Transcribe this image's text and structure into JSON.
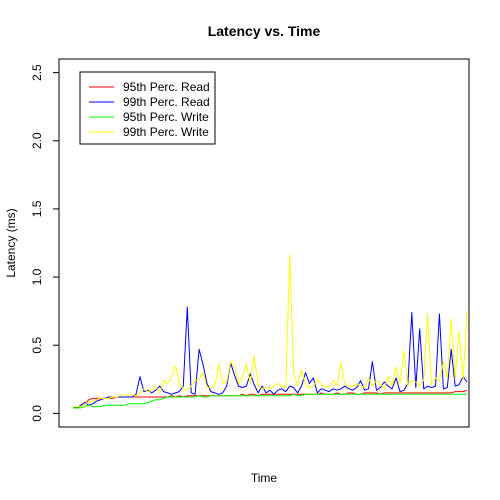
{
  "chart_data": {
    "type": "line",
    "title": "Latency vs. Time",
    "xlabel": "Time",
    "ylabel": "Latency (ms)",
    "ylim": [
      -0.1,
      2.6
    ],
    "xlim": [
      0,
      100
    ],
    "y_ticks": [
      "0.0",
      "0.5",
      "1.0",
      "1.5",
      "2.0",
      "2.5"
    ],
    "y_tick_values": [
      0,
      0.5,
      1.0,
      1.5,
      2.0,
      2.5
    ],
    "legend_position": "top-left",
    "x": [
      0,
      1,
      2,
      3,
      4,
      5,
      6,
      7,
      8,
      9,
      10,
      11,
      12,
      13,
      14,
      15,
      16,
      17,
      18,
      19,
      20,
      21,
      22,
      23,
      24,
      25,
      26,
      27,
      28,
      29,
      30,
      31,
      32,
      33,
      34,
      35,
      36,
      37,
      38,
      39,
      40,
      41,
      42,
      43,
      44,
      45,
      46,
      47,
      48,
      49,
      50,
      51,
      52,
      53,
      54,
      55,
      56,
      57,
      58,
      59,
      60,
      61,
      62,
      63,
      64,
      65,
      66,
      67,
      68,
      69,
      70,
      71,
      72,
      73,
      74,
      75,
      76,
      77,
      78,
      79,
      80,
      81,
      82,
      83,
      84,
      85,
      86,
      87,
      88,
      89,
      90,
      91,
      92,
      93,
      94,
      95,
      96,
      97,
      98,
      99,
      100
    ],
    "series": [
      {
        "name": "95th Perc. Read",
        "color": "#ff0000",
        "values": [
          0.04,
          0.04,
          0.05,
          0.07,
          0.1,
          0.11,
          0.11,
          0.11,
          0.11,
          0.11,
          0.11,
          0.12,
          0.12,
          0.12,
          0.12,
          0.12,
          0.12,
          0.12,
          0.12,
          0.12,
          0.12,
          0.12,
          0.12,
          0.12,
          0.12,
          0.13,
          0.12,
          0.13,
          0.12,
          0.13,
          0.13,
          0.13,
          0.13,
          0.13,
          0.13,
          0.13,
          0.13,
          0.13,
          0.13,
          0.13,
          0.13,
          0.13,
          0.13,
          0.14,
          0.13,
          0.14,
          0.14,
          0.13,
          0.14,
          0.14,
          0.14,
          0.14,
          0.14,
          0.14,
          0.14,
          0.14,
          0.14,
          0.14,
          0.14,
          0.14,
          0.14,
          0.14,
          0.14,
          0.15,
          0.14,
          0.14,
          0.14,
          0.15,
          0.14,
          0.14,
          0.15,
          0.15,
          0.14,
          0.14,
          0.15,
          0.15,
          0.15,
          0.15,
          0.14,
          0.15,
          0.15,
          0.15,
          0.15,
          0.15,
          0.15,
          0.15,
          0.15,
          0.15,
          0.15,
          0.15,
          0.15,
          0.15,
          0.15,
          0.15,
          0.15,
          0.15,
          0.15,
          0.16,
          0.16,
          0.16,
          0.17
        ]
      },
      {
        "name": "99th Perc. Read",
        "color": "#0000ff",
        "values": [
          0.05,
          0.04,
          0.06,
          0.08,
          0.06,
          0.07,
          0.09,
          0.1,
          0.11,
          0.12,
          0.12,
          0.12,
          0.12,
          0.12,
          0.12,
          0.12,
          0.14,
          0.27,
          0.16,
          0.17,
          0.15,
          0.17,
          0.2,
          0.16,
          0.15,
          0.14,
          0.15,
          0.16,
          0.2,
          0.78,
          0.15,
          0.14,
          0.47,
          0.36,
          0.22,
          0.16,
          0.15,
          0.14,
          0.15,
          0.2,
          0.37,
          0.28,
          0.2,
          0.19,
          0.2,
          0.29,
          0.21,
          0.15,
          0.2,
          0.15,
          0.17,
          0.14,
          0.17,
          0.18,
          0.16,
          0.2,
          0.19,
          0.15,
          0.2,
          0.3,
          0.22,
          0.26,
          0.15,
          0.18,
          0.17,
          0.16,
          0.18,
          0.17,
          0.18,
          0.2,
          0.18,
          0.17,
          0.19,
          0.24,
          0.17,
          0.18,
          0.38,
          0.17,
          0.19,
          0.23,
          0.2,
          0.18,
          0.26,
          0.16,
          0.17,
          0.22,
          0.74,
          0.19,
          0.62,
          0.18,
          0.2,
          0.19,
          0.2,
          0.73,
          0.18,
          0.19,
          0.47,
          0.2,
          0.21,
          0.27,
          0.23
        ]
      },
      {
        "name": "95th Perc. Write",
        "color": "#00ff00",
        "values": [
          0.04,
          0.04,
          0.04,
          0.05,
          0.06,
          0.05,
          0.05,
          0.05,
          0.06,
          0.06,
          0.06,
          0.06,
          0.06,
          0.06,
          0.07,
          0.07,
          0.07,
          0.07,
          0.07,
          0.08,
          0.09,
          0.1,
          0.1,
          0.11,
          0.12,
          0.12,
          0.12,
          0.12,
          0.12,
          0.12,
          0.12,
          0.12,
          0.13,
          0.12,
          0.12,
          0.13,
          0.13,
          0.13,
          0.13,
          0.13,
          0.13,
          0.13,
          0.13,
          0.13,
          0.13,
          0.13,
          0.13,
          0.13,
          0.13,
          0.13,
          0.13,
          0.13,
          0.13,
          0.13,
          0.13,
          0.13,
          0.14,
          0.13,
          0.13,
          0.14,
          0.14,
          0.14,
          0.14,
          0.14,
          0.14,
          0.14,
          0.14,
          0.14,
          0.14,
          0.14,
          0.14,
          0.14,
          0.14,
          0.14,
          0.14,
          0.14,
          0.14,
          0.14,
          0.14,
          0.14,
          0.14,
          0.14,
          0.14,
          0.14,
          0.14,
          0.14,
          0.14,
          0.14,
          0.14,
          0.14,
          0.14,
          0.14,
          0.14,
          0.14,
          0.14,
          0.14,
          0.14,
          0.14,
          0.14,
          0.14,
          0.14
        ]
      },
      {
        "name": "99th Perc. Write",
        "color": "#ffff00",
        "values": [
          0.05,
          0.05,
          0.05,
          0.07,
          0.08,
          0.09,
          0.1,
          0.11,
          0.11,
          0.11,
          0.12,
          0.12,
          0.13,
          0.14,
          0.13,
          0.14,
          0.13,
          0.15,
          0.18,
          0.16,
          0.17,
          0.2,
          0.15,
          0.24,
          0.22,
          0.26,
          0.35,
          0.22,
          0.18,
          0.17,
          0.2,
          0.24,
          0.25,
          0.3,
          0.19,
          0.19,
          0.2,
          0.36,
          0.22,
          0.23,
          0.38,
          0.34,
          0.22,
          0.27,
          0.36,
          0.22,
          0.42,
          0.2,
          0.18,
          0.19,
          0.18,
          0.2,
          0.22,
          0.2,
          0.19,
          1.16,
          0.3,
          0.2,
          0.32,
          0.21,
          0.19,
          0.2,
          0.25,
          0.21,
          0.19,
          0.2,
          0.24,
          0.2,
          0.37,
          0.21,
          0.2,
          0.2,
          0.22,
          0.2,
          0.19,
          0.26,
          0.2,
          0.24,
          0.22,
          0.18,
          0.27,
          0.2,
          0.34,
          0.22,
          0.46,
          0.2,
          0.24,
          0.23,
          0.2,
          0.25,
          0.73,
          0.21,
          0.26,
          0.24,
          0.38,
          0.26,
          0.69,
          0.25,
          0.6,
          0.25,
          0.75
        ]
      }
    ]
  }
}
